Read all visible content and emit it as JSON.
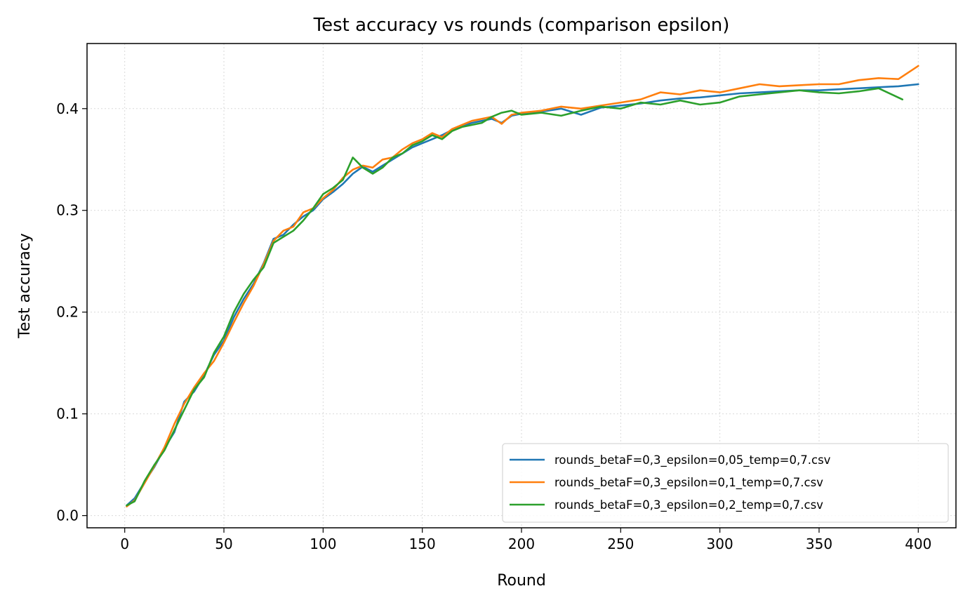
{
  "chart_data": {
    "type": "line",
    "title": "Test accuracy vs rounds (comparison epsilon)",
    "xlabel": "Round",
    "ylabel": "Test accuracy",
    "xlim": [
      -19,
      419
    ],
    "ylim": [
      -0.012,
      0.464
    ],
    "xticks": [
      0,
      50,
      100,
      150,
      200,
      250,
      300,
      350,
      400
    ],
    "yticks": [
      0.0,
      0.1,
      0.2,
      0.3,
      0.4
    ],
    "grid": true,
    "legend_position": "lower-right",
    "series": [
      {
        "name": "rounds_betaF=0,3_epsilon=0,05_temp=0,7.csv",
        "color": "#1f77b4",
        "x": [
          1,
          5,
          10,
          15,
          20,
          25,
          30,
          35,
          40,
          45,
          50,
          55,
          60,
          65,
          70,
          75,
          80,
          85,
          90,
          95,
          100,
          105,
          110,
          115,
          120,
          125,
          130,
          135,
          140,
          145,
          150,
          155,
          160,
          165,
          170,
          175,
          180,
          185,
          190,
          195,
          200,
          210,
          220,
          230,
          240,
          250,
          260,
          270,
          280,
          290,
          300,
          310,
          320,
          330,
          340,
          350,
          360,
          370,
          380,
          390,
          400
        ],
        "y": [
          0.01,
          0.017,
          0.033,
          0.048,
          0.066,
          0.082,
          0.112,
          0.122,
          0.138,
          0.158,
          0.172,
          0.195,
          0.213,
          0.228,
          0.248,
          0.272,
          0.276,
          0.286,
          0.294,
          0.3,
          0.311,
          0.318,
          0.326,
          0.336,
          0.343,
          0.338,
          0.344,
          0.35,
          0.356,
          0.362,
          0.366,
          0.37,
          0.374,
          0.379,
          0.383,
          0.386,
          0.388,
          0.39,
          0.386,
          0.393,
          0.395,
          0.397,
          0.4,
          0.394,
          0.401,
          0.403,
          0.405,
          0.408,
          0.41,
          0.411,
          0.413,
          0.415,
          0.416,
          0.417,
          0.418,
          0.418,
          0.419,
          0.42,
          0.421,
          0.422,
          0.424
        ]
      },
      {
        "name": "rounds_betaF=0,3_epsilon=0,1_temp=0,7.csv",
        "color": "#ff7f0e",
        "x": [
          1,
          5,
          10,
          15,
          20,
          25,
          30,
          35,
          40,
          45,
          50,
          55,
          60,
          65,
          70,
          75,
          80,
          85,
          90,
          95,
          100,
          105,
          110,
          115,
          120,
          125,
          130,
          135,
          140,
          145,
          150,
          155,
          160,
          165,
          170,
          175,
          180,
          185,
          190,
          195,
          200,
          210,
          220,
          230,
          240,
          250,
          260,
          270,
          280,
          290,
          300,
          310,
          320,
          330,
          340,
          350,
          360,
          370,
          380,
          390,
          400
        ],
        "y": [
          0.009,
          0.015,
          0.032,
          0.049,
          0.067,
          0.09,
          0.11,
          0.126,
          0.14,
          0.152,
          0.17,
          0.19,
          0.209,
          0.226,
          0.247,
          0.27,
          0.28,
          0.284,
          0.298,
          0.302,
          0.312,
          0.32,
          0.332,
          0.34,
          0.344,
          0.342,
          0.35,
          0.352,
          0.36,
          0.366,
          0.37,
          0.376,
          0.372,
          0.38,
          0.384,
          0.388,
          0.39,
          0.392,
          0.385,
          0.394,
          0.396,
          0.398,
          0.402,
          0.4,
          0.403,
          0.406,
          0.409,
          0.416,
          0.414,
          0.418,
          0.416,
          0.42,
          0.424,
          0.422,
          0.423,
          0.424,
          0.424,
          0.428,
          0.43,
          0.429,
          0.442
        ]
      },
      {
        "name": "rounds_betaF=0,3_epsilon=0,2_temp=0,7.csv",
        "color": "#2ca02c",
        "x": [
          1,
          5,
          10,
          15,
          20,
          25,
          30,
          35,
          40,
          45,
          50,
          55,
          60,
          65,
          70,
          75,
          80,
          85,
          90,
          95,
          100,
          105,
          110,
          115,
          120,
          125,
          130,
          135,
          140,
          145,
          150,
          155,
          160,
          165,
          170,
          175,
          180,
          185,
          190,
          195,
          200,
          210,
          220,
          230,
          240,
          250,
          260,
          270,
          280,
          290,
          300,
          310,
          320,
          330,
          340,
          350,
          360,
          370,
          380,
          392
        ],
        "y": [
          0.01,
          0.014,
          0.034,
          0.05,
          0.064,
          0.084,
          0.104,
          0.124,
          0.136,
          0.16,
          0.176,
          0.2,
          0.218,
          0.232,
          0.244,
          0.268,
          0.274,
          0.28,
          0.29,
          0.302,
          0.316,
          0.322,
          0.33,
          0.352,
          0.342,
          0.336,
          0.342,
          0.352,
          0.356,
          0.364,
          0.368,
          0.374,
          0.37,
          0.378,
          0.382,
          0.384,
          0.386,
          0.392,
          0.396,
          0.398,
          0.394,
          0.396,
          0.393,
          0.398,
          0.402,
          0.4,
          0.406,
          0.404,
          0.408,
          0.404,
          0.406,
          0.412,
          0.414,
          0.416,
          0.418,
          0.416,
          0.415,
          0.417,
          0.42,
          0.409
        ]
      }
    ]
  }
}
